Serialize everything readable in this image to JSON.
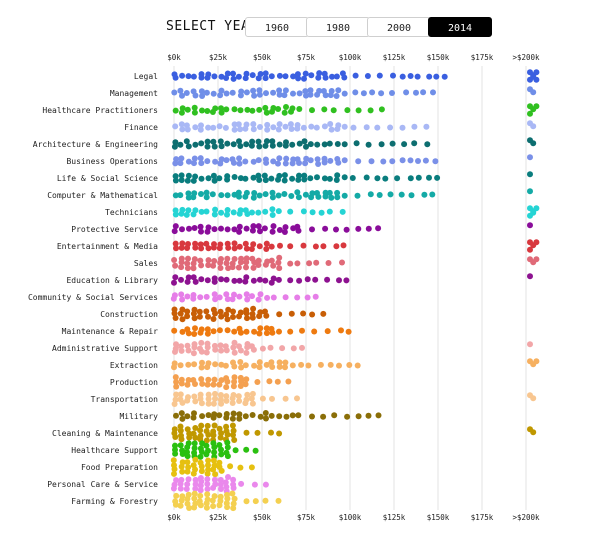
{
  "header": {
    "select_label": "SELECT YEAR",
    "years": [
      "1960",
      "1980",
      "2000",
      "2014"
    ],
    "active_year": "2014"
  },
  "chart_data": {
    "type": "scatter",
    "x_ticks": [
      "$0k",
      "$25k",
      "$50k",
      "$75k",
      "$100k",
      "$125k",
      "$150k",
      "$175k",
      ">$200k"
    ],
    "x_tick_values": [
      0,
      25,
      50,
      75,
      100,
      125,
      150,
      175,
      200
    ],
    "xlim": [
      0,
      200
    ],
    "grid": true,
    "categories": [
      {
        "name": "Legal",
        "color": "#3a5fe0",
        "min": 0,
        "max": 160,
        "density": 1,
        "dots200": 6
      },
      {
        "name": "Management",
        "color": "#6f8ee8",
        "min": 0,
        "max": 150,
        "density": 1,
        "dots200": 2
      },
      {
        "name": "Healthcare Practitioners",
        "color": "#30c020",
        "min": 0,
        "max": 120,
        "density": 1,
        "dots200": 4
      },
      {
        "name": "Finance",
        "color": "#a9b8f5",
        "min": 0,
        "max": 150,
        "density": 1,
        "dots200": 2
      },
      {
        "name": "Architecture & Engineering",
        "color": "#0d6e70",
        "min": 0,
        "max": 150,
        "density": 1,
        "dots200": 2
      },
      {
        "name": "Business Operations",
        "color": "#7a90e8",
        "min": 0,
        "max": 150,
        "density": 1,
        "dots200": 1
      },
      {
        "name": "Life & Social Science",
        "color": "#0a7d7e",
        "min": 0,
        "max": 150,
        "density": 1,
        "dots200": 1
      },
      {
        "name": "Computer & Mathematical",
        "color": "#14aaa6",
        "min": 0,
        "max": 150,
        "density": 1,
        "dots200": 1
      },
      {
        "name": "Technicians",
        "color": "#25d4d4",
        "min": 0,
        "max": 100,
        "density": 1,
        "dots200": 5
      },
      {
        "name": "Protective Service",
        "color": "#8a0d9a",
        "min": 0,
        "max": 120,
        "density": 1,
        "dots200": 1
      },
      {
        "name": "Entertainment & Media",
        "color": "#d8383e",
        "min": 0,
        "max": 100,
        "density": 1,
        "dots200": 4
      },
      {
        "name": "Sales",
        "color": "#e06a78",
        "min": 0,
        "max": 100,
        "density": 2,
        "dots200": 3
      },
      {
        "name": "Education & Library",
        "color": "#8d1290",
        "min": 0,
        "max": 100,
        "density": 1,
        "dots200": 1
      },
      {
        "name": "Community & Social Services",
        "color": "#e67ee8",
        "min": 0,
        "max": 85,
        "density": 1,
        "dots200": 0
      },
      {
        "name": "Construction",
        "color": "#c85e06",
        "min": 0,
        "max": 90,
        "density": 2,
        "dots200": 0
      },
      {
        "name": "Maintenance & Repair",
        "color": "#ee7a10",
        "min": 0,
        "max": 100,
        "density": 1,
        "dots200": 0
      },
      {
        "name": "Administrative Support",
        "color": "#f2a6a8",
        "min": 0,
        "max": 75,
        "density": 2,
        "dots200": 1
      },
      {
        "name": "Extraction",
        "color": "#f6b060",
        "min": 0,
        "max": 110,
        "density": 1,
        "dots200": 3
      },
      {
        "name": "Production",
        "color": "#f4a050",
        "min": 0,
        "max": 70,
        "density": 2,
        "dots200": 0
      },
      {
        "name": "Transportation",
        "color": "#f8c690",
        "min": 0,
        "max": 75,
        "density": 2,
        "dots200": 2
      },
      {
        "name": "Military",
        "color": "#8a6e08",
        "min": 0,
        "max": 120,
        "density": 1,
        "dots200": 0
      },
      {
        "name": "Cleaning & Maintenance",
        "color": "#c09800",
        "min": 0,
        "max": 60,
        "density": 3,
        "dots200": 2
      },
      {
        "name": "Healthcare Support",
        "color": "#2ac010",
        "min": 0,
        "max": 50,
        "density": 3,
        "dots200": 0
      },
      {
        "name": "Food Preparation",
        "color": "#e6c010",
        "min": 0,
        "max": 45,
        "density": 3,
        "dots200": 0
      },
      {
        "name": "Personal Care & Service",
        "color": "#ea88ec",
        "min": 0,
        "max": 55,
        "density": 3,
        "dots200": 0
      },
      {
        "name": "Farming & Forestry",
        "color": "#f4d050",
        "min": 0,
        "max": 60,
        "density": 3,
        "dots200": 0
      }
    ]
  }
}
